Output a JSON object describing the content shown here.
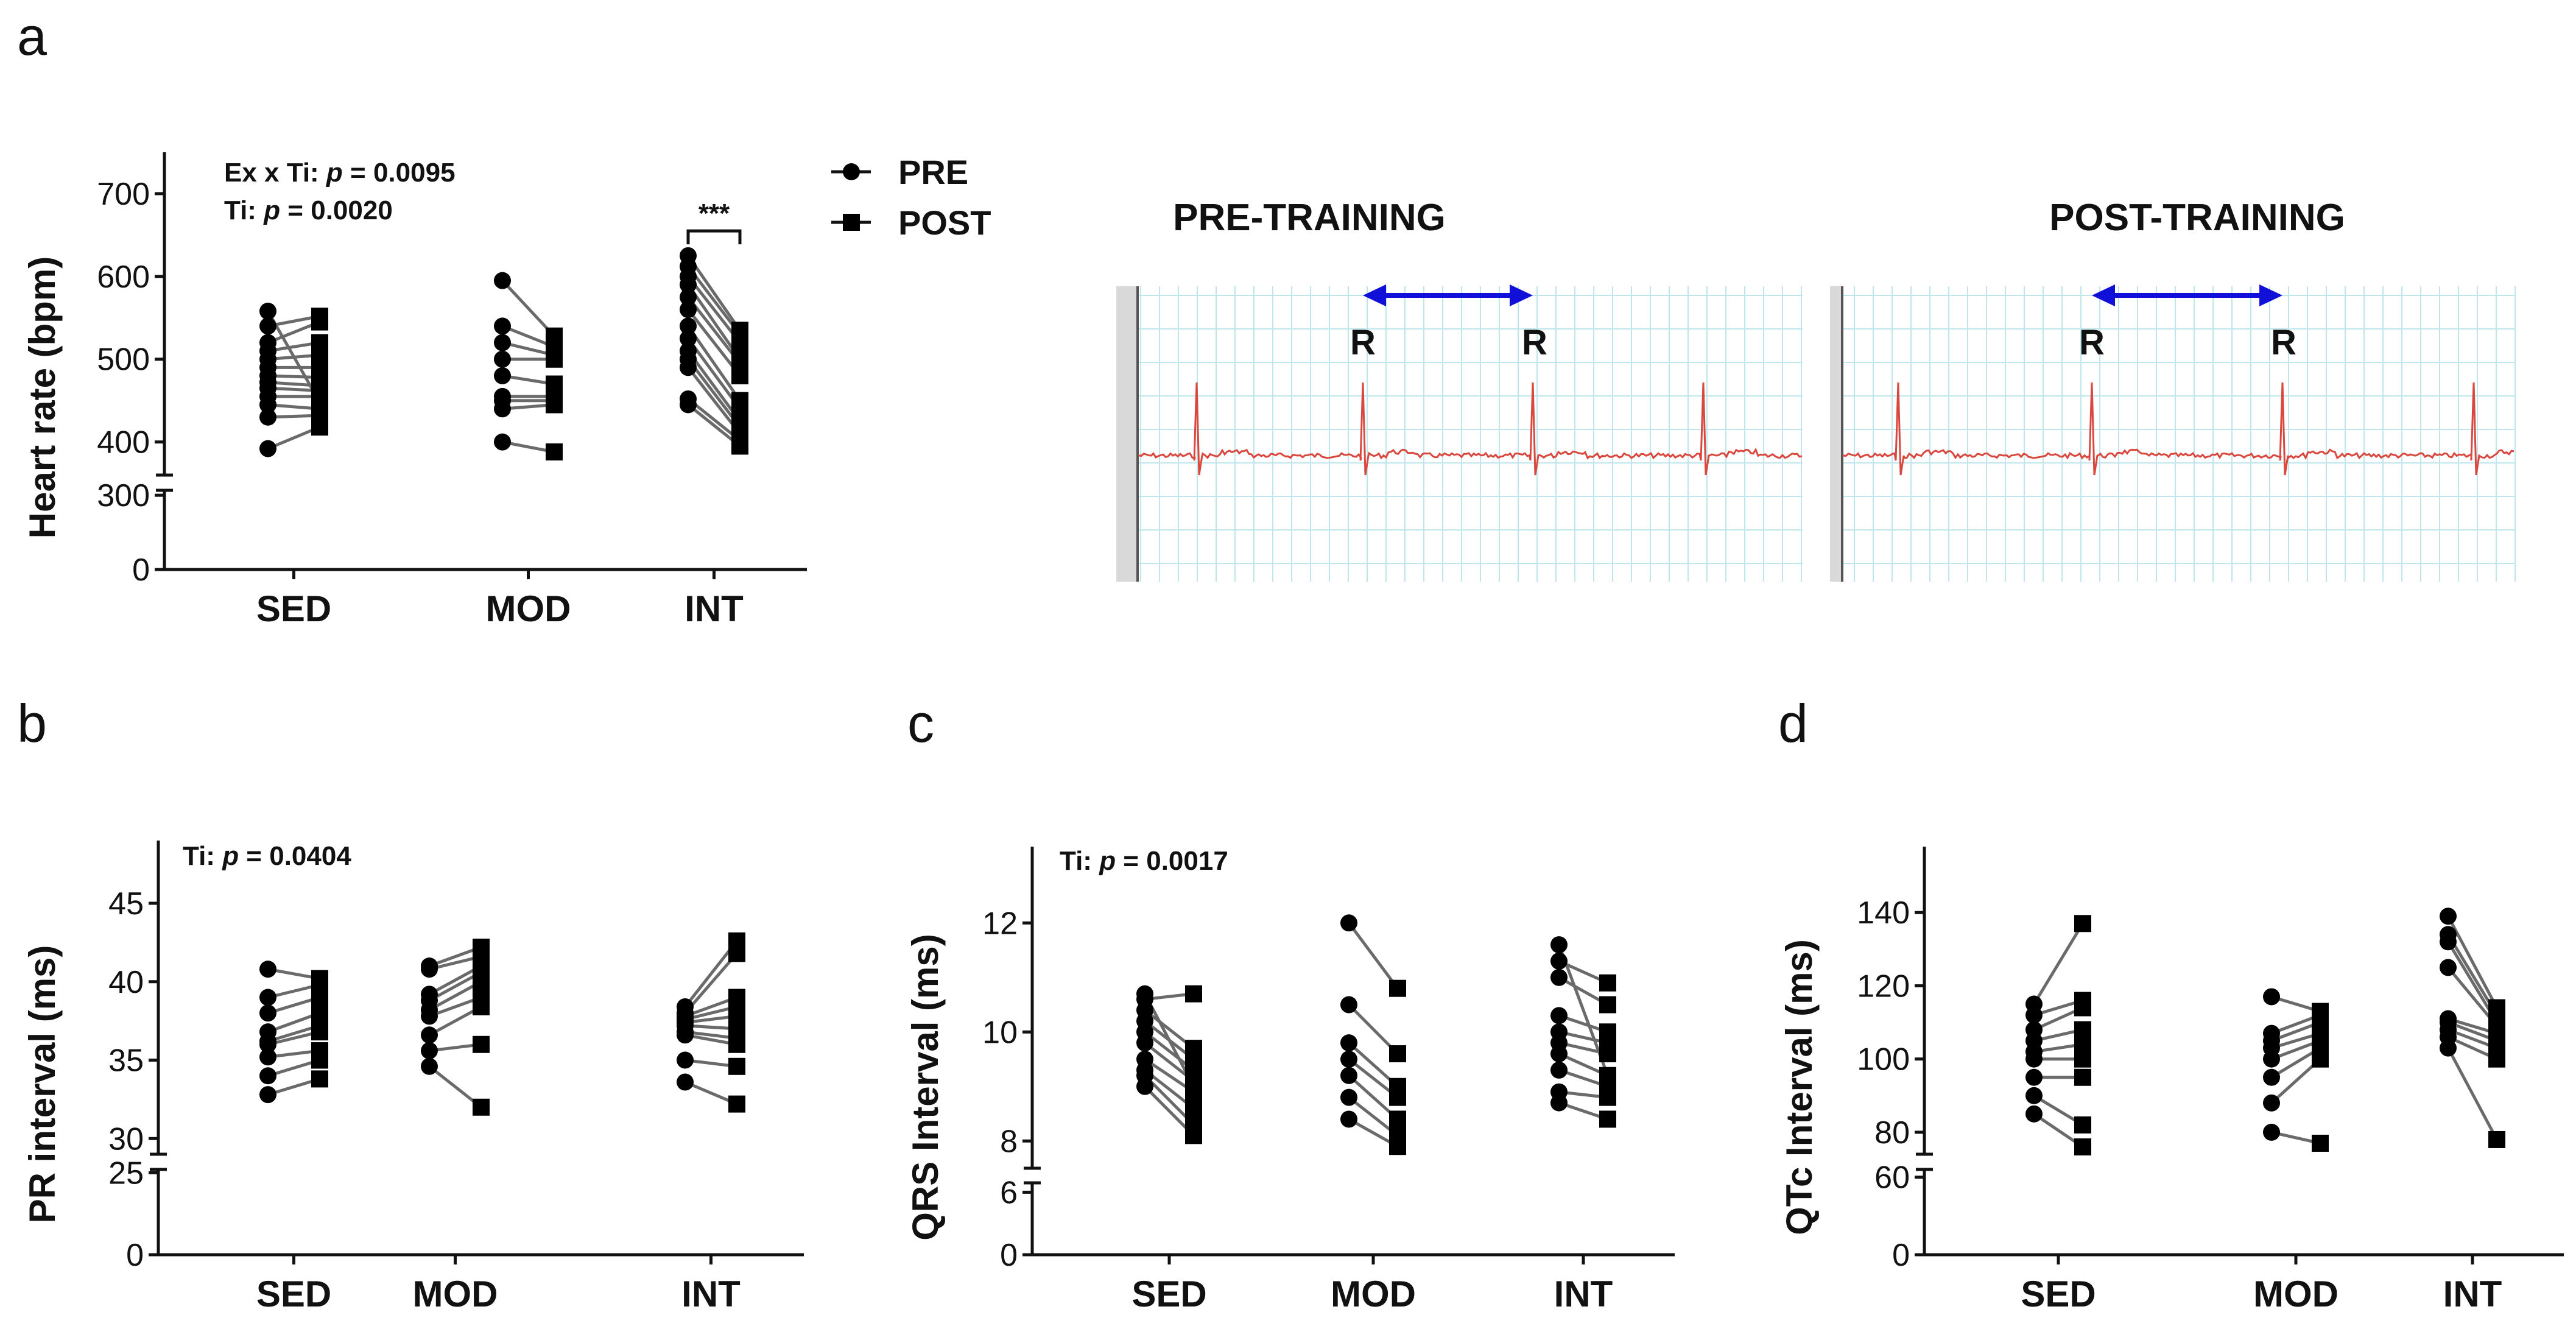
{
  "figure": {
    "panel_labels": [
      "a",
      "b",
      "c",
      "d"
    ],
    "legend": [
      {
        "label": "PRE",
        "marker": "circle"
      },
      {
        "label": "POST",
        "marker": "square"
      }
    ],
    "ecg": {
      "pre_title": "PRE-TRAINING",
      "post_title": "POST-TRAINING",
      "r_label": "R",
      "arrow_color": "#1010d8",
      "trace_color": "#d9473e",
      "grid_color": "#bfe6ec"
    },
    "colors": {
      "marker": "#000000",
      "pair_line": "#6a6a6a"
    }
  },
  "chart_data": [
    {
      "id": "a",
      "type": "scatter",
      "subtype": "paired-before-after",
      "categories": [
        "SED",
        "MOD",
        "INT"
      ],
      "ylabel": "Heart rate (bpm)",
      "ylim": [
        0,
        750
      ],
      "axis_break": [
        320,
        360
      ],
      "yticks_low": [
        0,
        300
      ],
      "yticks_high": [
        400,
        500,
        600,
        700
      ],
      "annotations": [
        "Ex x Ti: ",
        "p",
        " = 0.0095",
        "Ti: ",
        "p",
        " = 0.0020"
      ],
      "significance": "***",
      "significance_group": "INT",
      "groups": [
        {
          "name": "SED",
          "pre": [
            392,
            430,
            445,
            455,
            465,
            472,
            480,
            490,
            500,
            510,
            520,
            540,
            558
          ],
          "post": [
            418,
            432,
            440,
            455,
            462,
            468,
            478,
            490,
            505,
            520,
            545,
            552,
            448
          ]
        },
        {
          "name": "MOD",
          "pre": [
            400,
            440,
            450,
            455,
            480,
            500,
            520,
            540,
            595
          ],
          "post": [
            388,
            445,
            450,
            455,
            470,
            500,
            505,
            515,
            528
          ]
        },
        {
          "name": "INT",
          "pre": [
            445,
            452,
            490,
            500,
            510,
            525,
            540,
            560,
            575,
            590,
            600,
            612,
            625
          ],
          "post": [
            395,
            402,
            410,
            418,
            425,
            440,
            450,
            480,
            495,
            500,
            520,
            530,
            535
          ]
        }
      ]
    },
    {
      "id": "b",
      "type": "scatter",
      "subtype": "paired-before-after",
      "categories": [
        "SED",
        "MOD",
        "INT"
      ],
      "ylabel": "PR interval (ms)",
      "ylim": [
        0,
        49
      ],
      "axis_break": [
        26,
        29
      ],
      "yticks_low": [
        0,
        25
      ],
      "yticks_high": [
        30,
        35,
        40,
        45
      ],
      "annotations": [
        "Ti: ",
        "p",
        " = 0.0404"
      ],
      "groups": [
        {
          "name": "SED",
          "pre": [
            32.8,
            34.0,
            35.2,
            36.0,
            36.2,
            36.8,
            38.0,
            39.0,
            40.8
          ],
          "post": [
            33.8,
            35.0,
            35.6,
            36.8,
            37.2,
            38.0,
            39.0,
            39.8,
            40.2
          ]
        },
        {
          "name": "MOD",
          "pre": [
            34.6,
            35.6,
            36.6,
            37.8,
            38.2,
            38.8,
            39.2,
            40.8,
            41.0
          ],
          "post": [
            32.0,
            36.0,
            38.4,
            39.0,
            40.0,
            40.6,
            41.0,
            41.6,
            42.2
          ]
        },
        {
          "name": "INT",
          "pre": [
            33.6,
            35.0,
            36.6,
            36.8,
            37.2,
            37.4,
            37.6,
            37.8,
            38.0,
            38.4
          ],
          "post": [
            32.2,
            34.6,
            36.0,
            36.4,
            37.0,
            37.8,
            38.4,
            39.0,
            41.8,
            42.6
          ]
        }
      ]
    },
    {
      "id": "c",
      "type": "scatter",
      "subtype": "paired-before-after",
      "categories": [
        "SED",
        "MOD",
        "INT"
      ],
      "ylabel": "QRS Interval (ms)",
      "ylim": [
        0,
        13.4
      ],
      "axis_break": [
        6.9,
        7.5
      ],
      "yticks_low": [
        0,
        6
      ],
      "yticks_high": [
        8,
        10,
        12
      ],
      "annotations": [
        "Ti: ",
        "p",
        " = 0.0017"
      ],
      "groups": [
        {
          "name": "SED",
          "pre": [
            9.0,
            9.2,
            9.3,
            9.5,
            9.8,
            10.0,
            10.2,
            10.4,
            10.6,
            10.7
          ],
          "post": [
            8.1,
            8.3,
            8.6,
            8.9,
            9.1,
            9.3,
            9.5,
            9.7,
            10.7,
            9.0
          ]
        },
        {
          "name": "MOD",
          "pre": [
            8.4,
            8.8,
            9.2,
            9.5,
            9.8,
            10.5,
            12.0
          ],
          "post": [
            7.9,
            8.1,
            8.4,
            8.8,
            9.0,
            9.6,
            10.8
          ]
        },
        {
          "name": "INT",
          "pre": [
            8.7,
            8.9,
            9.3,
            9.6,
            9.8,
            10.0,
            10.3,
            11.0,
            11.3,
            11.6
          ],
          "post": [
            8.4,
            8.8,
            9.0,
            9.2,
            9.6,
            9.8,
            10.0,
            10.5,
            10.9,
            9.2
          ]
        }
      ]
    },
    {
      "id": "d",
      "type": "scatter",
      "subtype": "paired-before-after",
      "categories": [
        "SED",
        "MOD",
        "INT"
      ],
      "ylabel": "QTc Interval (ms)",
      "ylim": [
        0,
        158
      ],
      "axis_break": [
        66,
        74
      ],
      "yticks_low": [
        0,
        60
      ],
      "yticks_high": [
        80,
        100,
        120,
        140
      ],
      "annotations": [],
      "groups": [
        {
          "name": "SED",
          "pre": [
            85,
            90,
            95,
            100,
            102,
            105,
            108,
            112,
            115
          ],
          "post": [
            76,
            82,
            95,
            100,
            104,
            108,
            114,
            116,
            137
          ]
        },
        {
          "name": "MOD",
          "pre": [
            80,
            88,
            95,
            100,
            103,
            105,
            107,
            117
          ],
          "post": [
            77,
            100,
            103,
            105,
            107,
            110,
            112,
            113
          ]
        },
        {
          "name": "INT",
          "pre": [
            103,
            106,
            108,
            110,
            111,
            125,
            132,
            134,
            139
          ],
          "post": [
            78,
            100,
            103,
            105,
            107,
            109,
            110,
            112,
            114
          ]
        }
      ]
    }
  ]
}
